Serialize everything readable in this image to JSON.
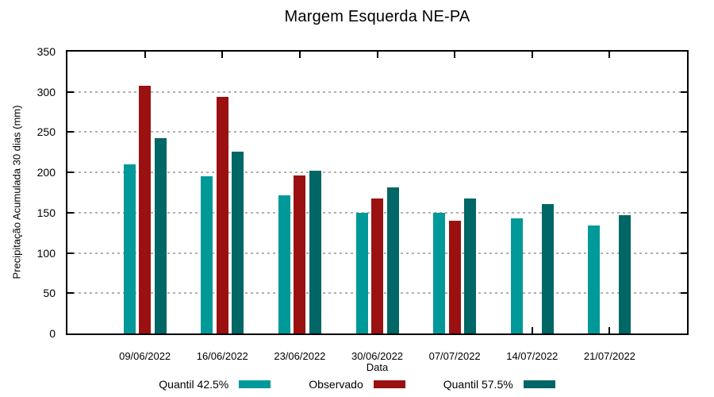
{
  "chart_data": {
    "type": "bar",
    "title": "Margem Esquerda NE-PA",
    "xlabel": "Data",
    "ylabel": "Precipitação Acumulada 30 dias (mm)",
    "ylim": [
      0,
      350
    ],
    "yticks": [
      0,
      50,
      100,
      150,
      200,
      250,
      300,
      350
    ],
    "grid": true,
    "grid_color": "#b0b0b0",
    "legend_position": "bottom-center",
    "categories": [
      "09/06/2022",
      "16/06/2022",
      "23/06/2022",
      "30/06/2022",
      "07/07/2022",
      "14/07/2022",
      "21/07/2022"
    ],
    "series": [
      {
        "name": "Quantil 42.5%",
        "color": "#009999",
        "values": [
          210,
          195,
          172,
          150,
          150,
          143,
          134
        ]
      },
      {
        "name": "Observado",
        "color": "#9B1111",
        "values": [
          308,
          294,
          196,
          168,
          140,
          null,
          null
        ]
      },
      {
        "name": "Quantil 57.5%",
        "color": "#006666",
        "values": [
          243,
          226,
          202,
          181,
          168,
          161,
          147
        ]
      }
    ]
  }
}
